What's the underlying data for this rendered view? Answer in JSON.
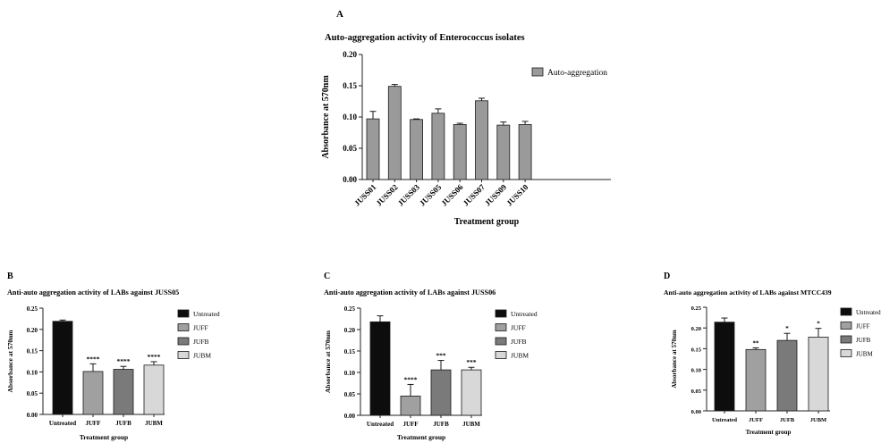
{
  "chart_data": [
    {
      "panel": "A",
      "type": "bar",
      "title": "Auto-aggregation activity of Enterococcus isolates",
      "xlabel": "Treatment group",
      "ylabel": "Absorbance at 570nm",
      "ylim": [
        0,
        0.2
      ],
      "yticks": [
        "0.00",
        "0.05",
        "0.10",
        "0.15",
        "0.20"
      ],
      "categories": [
        "JUSS01",
        "JUSS02",
        "JUSS03",
        "JUSS05",
        "JUSS06",
        "JUSS07",
        "JUSS09",
        "JUSS10"
      ],
      "values": [
        0.097,
        0.149,
        0.096,
        0.106,
        0.088,
        0.126,
        0.087,
        0.088
      ],
      "errors": [
        0.012,
        0.003,
        0.001,
        0.007,
        0.002,
        0.004,
        0.005,
        0.005
      ],
      "colors": [
        "#9a9a9a",
        "#9a9a9a",
        "#9a9a9a",
        "#9a9a9a",
        "#9a9a9a",
        "#9a9a9a",
        "#9a9a9a",
        "#9a9a9a"
      ],
      "significance": [
        "",
        "",
        "",
        "",
        "",
        "",
        "",
        ""
      ],
      "legend": [
        {
          "label": "Auto-aggregation",
          "color": "#9a9a9a"
        }
      ],
      "legend_position": "right",
      "grid": false
    },
    {
      "panel": "B",
      "type": "bar",
      "title": "Anti-auto aggregation activity of LABs against JUSS05",
      "xlabel": "Treatment group",
      "ylabel": "Absorbance at 570nm",
      "ylim": [
        0,
        0.25
      ],
      "yticks": [
        "0.00",
        "0.05",
        "0.10",
        "0.15",
        "0.20",
        "0.25"
      ],
      "categories": [
        "Untreated",
        "JUFF",
        "JUFB",
        "JUBM"
      ],
      "values": [
        0.219,
        0.101,
        0.106,
        0.116
      ],
      "errors": [
        0.003,
        0.018,
        0.007,
        0.008
      ],
      "colors": [
        "#0d0d0d",
        "#a0a0a0",
        "#7a7a7a",
        "#d8d8d8"
      ],
      "significance": [
        "",
        "****",
        "****",
        "****"
      ],
      "legend": [
        {
          "label": "Untreated",
          "color": "#0d0d0d"
        },
        {
          "label": "JUFF",
          "color": "#a0a0a0"
        },
        {
          "label": "JUFB",
          "color": "#7a7a7a"
        },
        {
          "label": "JUBM",
          "color": "#d8d8d8"
        }
      ],
      "legend_position": "right",
      "grid": false
    },
    {
      "panel": "C",
      "type": "bar",
      "title": "Anti-auto aggregation activity of LABs against JUSS06",
      "xlabel": "Treatment group",
      "ylabel": "Absorbance at 570nm",
      "ylim": [
        0,
        0.25
      ],
      "yticks": [
        "0.00",
        "0.05",
        "0.10",
        "0.15",
        "0.20",
        "0.25"
      ],
      "categories": [
        "Untreated",
        "JUFF",
        "JUFB",
        "JUBM"
      ],
      "values": [
        0.218,
        0.045,
        0.106,
        0.106
      ],
      "errors": [
        0.014,
        0.027,
        0.022,
        0.006
      ],
      "colors": [
        "#0d0d0d",
        "#a0a0a0",
        "#7a7a7a",
        "#d8d8d8"
      ],
      "significance": [
        "",
        "****",
        "***",
        "***"
      ],
      "legend": [
        {
          "label": "Untreated",
          "color": "#0d0d0d"
        },
        {
          "label": "JUFF",
          "color": "#a0a0a0"
        },
        {
          "label": "JUFB",
          "color": "#7a7a7a"
        },
        {
          "label": "JUBM",
          "color": "#d8d8d8"
        }
      ],
      "legend_position": "right",
      "grid": false
    },
    {
      "panel": "D",
      "type": "bar",
      "title": "Anti-auto aggregation activity of LABs against MTCC439",
      "xlabel": "Treatment group",
      "ylabel": "Absorbance at 570nm",
      "ylim": [
        0,
        0.25
      ],
      "yticks": [
        "0.00",
        "0.05",
        "0.10",
        "0.15",
        "0.20",
        "0.25"
      ],
      "categories": [
        "Untreated",
        "JUFF",
        "JUFB",
        "JUBM"
      ],
      "values": [
        0.214,
        0.148,
        0.17,
        0.178
      ],
      "errors": [
        0.01,
        0.004,
        0.017,
        0.021
      ],
      "colors": [
        "#0d0d0d",
        "#a0a0a0",
        "#7a7a7a",
        "#d8d8d8"
      ],
      "significance": [
        "",
        "**",
        "*",
        "*"
      ],
      "legend": [
        {
          "label": "Untreated",
          "color": "#0d0d0d"
        },
        {
          "label": "JUFF",
          "color": "#a0a0a0"
        },
        {
          "label": "JUFB",
          "color": "#7a7a7a"
        },
        {
          "label": "JUBM",
          "color": "#d8d8d8"
        }
      ],
      "legend_position": "right",
      "grid": false
    }
  ]
}
